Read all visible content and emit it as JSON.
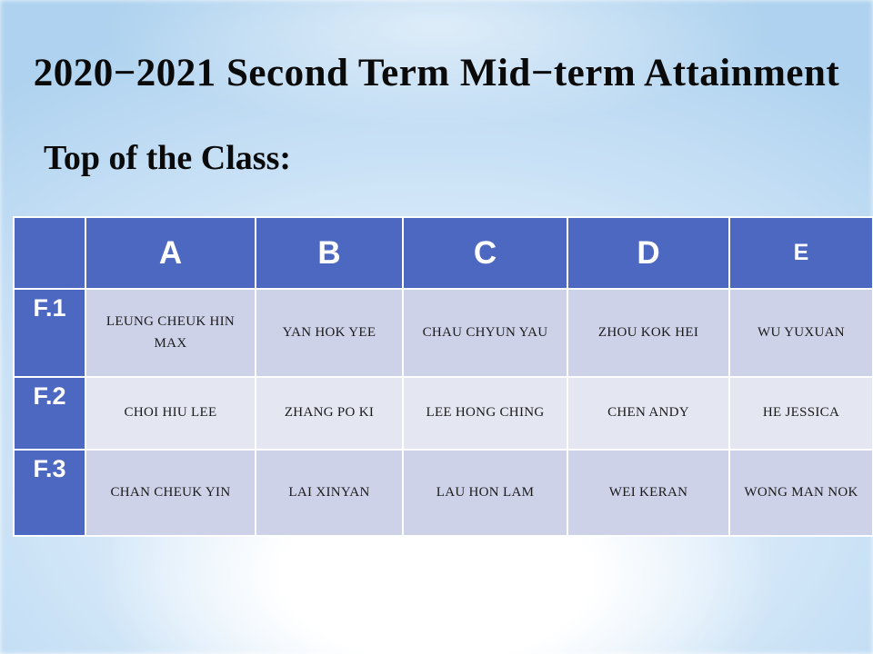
{
  "slide": {
    "title": "2020−2021 Second Term Mid−term Attainment",
    "subtitle": "Top of the Class:"
  },
  "table": {
    "column_headers": [
      "A",
      "B",
      "C",
      "D",
      "E"
    ],
    "rows": [
      {
        "label": "F.1",
        "cells": [
          "LEUNG CHEUK HIN MAX",
          "YAN HOK YEE",
          "CHAU CHYUN YAU",
          "ZHOU KOK HEI",
          "WU YUXUAN"
        ]
      },
      {
        "label": "F.2",
        "cells": [
          "CHOI HIU LEE",
          "ZHANG PO KI",
          "LEE HONG CHING",
          "CHEN ANDY",
          "HE JESSICA"
        ]
      },
      {
        "label": "F.3",
        "cells": [
          "CHAN CHEUK YIN",
          "LAI XINYAN",
          "LAU HON LAM",
          "WEI KERAN",
          "WONG MAN NOK"
        ]
      }
    ]
  },
  "colors": {
    "header_blue": "#4D68C1",
    "band_dark": "#CDD2E9",
    "band_light": "#E4E6F2",
    "grid_white": "#FFFFFF",
    "text_dark": "#1A1A1A",
    "background_blue": "#AED2EF"
  }
}
